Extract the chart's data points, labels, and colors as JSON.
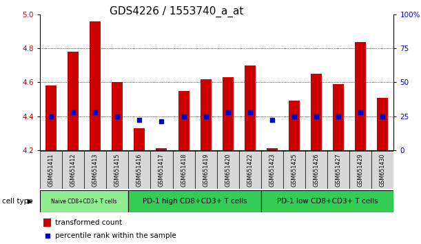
{
  "title": "GDS4226 / 1553740_a_at",
  "samples": [
    "GSM651411",
    "GSM651412",
    "GSM651413",
    "GSM651415",
    "GSM651416",
    "GSM651417",
    "GSM651418",
    "GSM651419",
    "GSM651420",
    "GSM651422",
    "GSM651423",
    "GSM651425",
    "GSM651426",
    "GSM651427",
    "GSM651429",
    "GSM651430"
  ],
  "transformed_count": [
    4.58,
    4.78,
    4.96,
    4.6,
    4.33,
    4.21,
    4.55,
    4.62,
    4.63,
    4.7,
    4.21,
    4.49,
    4.65,
    4.59,
    4.84,
    4.51
  ],
  "percentile_rank": [
    25,
    28,
    28,
    25,
    22,
    21,
    25,
    25,
    28,
    28,
    22,
    25,
    25,
    25,
    28,
    25
  ],
  "ylim": [
    4.2,
    5.0
  ],
  "yticks": [
    4.2,
    4.4,
    4.6,
    4.8,
    5.0
  ],
  "right_yticks": [
    0,
    25,
    50,
    75,
    100
  ],
  "right_ylabels": [
    "0",
    "25",
    "50",
    "75",
    "100%"
  ],
  "bar_color": "#cc0000",
  "dot_color": "#0000cc",
  "cell_type_groups": [
    {
      "label": "Naive CD8+CD3+ T cells",
      "start": 0,
      "end": 3,
      "color": "#90ee90"
    },
    {
      "label": "PD-1 high CD8+CD3+ T cells",
      "start": 4,
      "end": 9,
      "color": "#33cc55"
    },
    {
      "label": "PD-1 low CD8+CD3+ T cells",
      "start": 10,
      "end": 15,
      "color": "#33cc55"
    }
  ],
  "legend_bar_label": "transformed count",
  "legend_dot_label": "percentile rank within the sample",
  "left_tick_color": "#cc0000",
  "right_tick_color": "#0000cc",
  "title_fontsize": 11,
  "tick_fontsize": 7.5,
  "sample_fontsize": 5.8,
  "celltype_fontsize_small": 5.5,
  "celltype_fontsize_large": 7.5,
  "legend_fontsize": 7.5
}
